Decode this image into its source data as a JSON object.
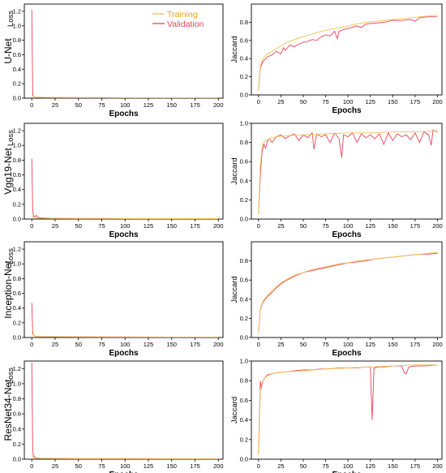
{
  "figure": {
    "legend": {
      "training": "Training",
      "validation": "Validation"
    },
    "colors": {
      "training": "#F2C14E",
      "validation": "#E8445A",
      "axis": "#000000"
    }
  },
  "chart_data": [
    {
      "type": "line",
      "model": "U-Net",
      "metric": "loss",
      "xlabel": "Epochs",
      "ylabel": "Loss",
      "xlim": [
        -8,
        205
      ],
      "ylim": [
        0,
        1.3
      ],
      "xticks": [
        0,
        25,
        50,
        75,
        100,
        125,
        150,
        175,
        200
      ],
      "yticks": [
        0.0,
        0.2,
        0.4,
        0.6,
        0.8,
        1.0,
        1.2
      ],
      "ytick_labels": [
        "0.0",
        "0.2",
        "0.4",
        "0.6",
        "0.8",
        "1.0",
        "1.2"
      ],
      "legend_position": "top-center",
      "series": [
        {
          "name": "Training",
          "x": [
            0,
            1,
            2,
            3,
            5,
            10,
            20,
            50,
            100,
            150,
            200
          ],
          "y": [
            0.06,
            0.03,
            0.02,
            0.015,
            0.012,
            0.01,
            0.009,
            0.008,
            0.007,
            0.006,
            0.006
          ]
        },
        {
          "name": "Validation",
          "x": [
            0,
            1,
            2,
            3,
            5,
            10,
            20,
            50,
            100,
            150,
            200
          ],
          "y": [
            1.22,
            0.05,
            0.02,
            0.015,
            0.012,
            0.01,
            0.009,
            0.008,
            0.007,
            0.006,
            0.006
          ]
        }
      ]
    },
    {
      "type": "line",
      "model": "U-Net",
      "metric": "jaccard",
      "xlabel": "Epochs",
      "ylabel": "Jaccard",
      "xlim": [
        -8,
        205
      ],
      "ylim": [
        0,
        1.0
      ],
      "xticks": [
        0,
        25,
        50,
        75,
        100,
        125,
        150,
        175,
        200
      ],
      "yticks": [
        0.0,
        0.2,
        0.4,
        0.6,
        0.8
      ],
      "ytick_labels": [
        "0.0",
        "0.2",
        "0.4",
        "0.6",
        "0.8"
      ],
      "series": [
        {
          "name": "Training",
          "x": [
            0,
            2,
            5,
            10,
            15,
            20,
            25,
            30,
            40,
            50,
            60,
            70,
            80,
            90,
            100,
            110,
            120,
            130,
            140,
            150,
            160,
            170,
            180,
            190,
            200
          ],
          "y": [
            0.05,
            0.32,
            0.4,
            0.45,
            0.48,
            0.51,
            0.54,
            0.57,
            0.61,
            0.64,
            0.67,
            0.7,
            0.72,
            0.74,
            0.76,
            0.78,
            0.8,
            0.81,
            0.82,
            0.83,
            0.84,
            0.85,
            0.86,
            0.87,
            0.88
          ]
        },
        {
          "name": "Validation",
          "x": [
            0,
            2,
            5,
            10,
            15,
            20,
            25,
            28,
            30,
            35,
            40,
            45,
            50,
            55,
            60,
            65,
            70,
            75,
            80,
            85,
            88,
            90,
            95,
            100,
            110,
            115,
            120,
            130,
            140,
            150,
            160,
            170,
            175,
            180,
            190,
            200
          ],
          "y": [
            0.05,
            0.3,
            0.37,
            0.42,
            0.44,
            0.48,
            0.45,
            0.52,
            0.49,
            0.55,
            0.53,
            0.56,
            0.58,
            0.59,
            0.61,
            0.6,
            0.64,
            0.66,
            0.65,
            0.7,
            0.62,
            0.7,
            0.72,
            0.73,
            0.76,
            0.74,
            0.78,
            0.79,
            0.8,
            0.82,
            0.82,
            0.83,
            0.81,
            0.85,
            0.86,
            0.86
          ]
        }
      ]
    },
    {
      "type": "line",
      "model": "Vgg19-Net",
      "metric": "loss",
      "xlabel": "Epochs",
      "ylabel": "Loss",
      "xlim": [
        -8,
        205
      ],
      "ylim": [
        0,
        1.3
      ],
      "xticks": [
        0,
        25,
        50,
        75,
        100,
        125,
        150,
        175,
        200
      ],
      "yticks": [
        0.0,
        0.2,
        0.4,
        0.6,
        0.8,
        1.0,
        1.2
      ],
      "ytick_labels": [
        "0.0",
        "0.2",
        "0.4",
        "0.6",
        "0.8",
        "1.0",
        "1.2"
      ],
      "series": [
        {
          "name": "Training",
          "x": [
            0,
            1,
            2,
            3,
            5,
            10,
            20,
            50,
            100,
            150,
            200
          ],
          "y": [
            0.05,
            0.03,
            0.02,
            0.015,
            0.012,
            0.01,
            0.009,
            0.008,
            0.007,
            0.006,
            0.006
          ]
        },
        {
          "name": "Validation",
          "x": [
            0,
            1,
            2,
            3,
            4,
            5,
            6,
            7,
            8,
            10,
            20,
            50,
            100,
            150,
            200
          ],
          "y": [
            0.82,
            0.1,
            0.04,
            0.03,
            0.04,
            0.05,
            0.03,
            0.02,
            0.02,
            0.015,
            0.01,
            0.008,
            0.007,
            0.006,
            0.006
          ]
        }
      ]
    },
    {
      "type": "line",
      "model": "Vgg19-Net",
      "metric": "jaccard",
      "xlabel": "Epochs",
      "ylabel": "Jaccard",
      "xlim": [
        -8,
        205
      ],
      "ylim": [
        0,
        1.0
      ],
      "xticks": [
        0,
        25,
        50,
        75,
        100,
        125,
        150,
        175,
        200
      ],
      "yticks": [
        0.0,
        0.2,
        0.4,
        0.6,
        0.8,
        1.0
      ],
      "ytick_labels": [
        "0.0",
        "0.2",
        "0.4",
        "0.6",
        "0.8",
        "1.0"
      ],
      "series": [
        {
          "name": "Training",
          "x": [
            0,
            2,
            4,
            6,
            8,
            10,
            15,
            20,
            30,
            50,
            75,
            100,
            125,
            150,
            175,
            200
          ],
          "y": [
            0.05,
            0.55,
            0.75,
            0.8,
            0.82,
            0.83,
            0.85,
            0.86,
            0.87,
            0.88,
            0.89,
            0.9,
            0.9,
            0.91,
            0.91,
            0.92
          ]
        },
        {
          "name": "Validation",
          "x": [
            0,
            2,
            4,
            6,
            8,
            10,
            12,
            15,
            20,
            25,
            30,
            35,
            40,
            45,
            50,
            55,
            60,
            62,
            65,
            70,
            75,
            80,
            85,
            90,
            93,
            95,
            100,
            105,
            110,
            115,
            120,
            125,
            130,
            135,
            140,
            145,
            150,
            155,
            160,
            165,
            170,
            175,
            180,
            185,
            190,
            193,
            195,
            200
          ],
          "y": [
            0.05,
            0.45,
            0.7,
            0.78,
            0.74,
            0.82,
            0.84,
            0.8,
            0.86,
            0.88,
            0.84,
            0.87,
            0.89,
            0.82,
            0.88,
            0.85,
            0.9,
            0.73,
            0.89,
            0.86,
            0.88,
            0.8,
            0.9,
            0.84,
            0.64,
            0.88,
            0.86,
            0.9,
            0.8,
            0.89,
            0.85,
            0.88,
            0.84,
            0.89,
            0.78,
            0.9,
            0.82,
            0.89,
            0.86,
            0.88,
            0.83,
            0.9,
            0.8,
            0.91,
            0.88,
            0.77,
            0.93,
            0.91
          ]
        }
      ]
    },
    {
      "type": "line",
      "model": "Inception-Net",
      "metric": "loss",
      "xlabel": "Epochs",
      "ylabel": "Loss",
      "xlim": [
        -8,
        205
      ],
      "ylim": [
        0,
        1.3
      ],
      "xticks": [
        0,
        25,
        50,
        75,
        100,
        125,
        150,
        175,
        200
      ],
      "yticks": [
        0.0,
        0.2,
        0.4,
        0.6,
        0.8,
        1.0,
        1.2
      ],
      "ytick_labels": [
        "0.0",
        "0.2",
        "0.4",
        "0.6",
        "0.8",
        "1.0",
        "1.2"
      ],
      "series": [
        {
          "name": "Training",
          "x": [
            0,
            1,
            2,
            3,
            5,
            10,
            20,
            50,
            100,
            150,
            200
          ],
          "y": [
            0.08,
            0.04,
            0.03,
            0.02,
            0.015,
            0.012,
            0.01,
            0.009,
            0.008,
            0.007,
            0.007
          ]
        },
        {
          "name": "Validation",
          "x": [
            0,
            1,
            2,
            3,
            5,
            10,
            20,
            50,
            100,
            150,
            200
          ],
          "y": [
            0.47,
            0.06,
            0.03,
            0.02,
            0.015,
            0.012,
            0.01,
            0.009,
            0.008,
            0.007,
            0.007
          ]
        }
      ]
    },
    {
      "type": "line",
      "model": "Inception-Net",
      "metric": "jaccard",
      "xlabel": "Epochs",
      "ylabel": "Jaccard",
      "xlim": [
        -8,
        205
      ],
      "ylim": [
        0,
        1.0
      ],
      "xticks": [
        0,
        25,
        50,
        75,
        100,
        125,
        150,
        175,
        200
      ],
      "yticks": [
        0.0,
        0.2,
        0.4,
        0.6,
        0.8
      ],
      "ytick_labels": [
        "0.0",
        "0.2",
        "0.4",
        "0.6",
        "0.8"
      ],
      "series": [
        {
          "name": "Training",
          "x": [
            0,
            2,
            5,
            10,
            15,
            20,
            25,
            30,
            40,
            50,
            60,
            70,
            80,
            90,
            100,
            110,
            120,
            130,
            140,
            150,
            160,
            170,
            180,
            190,
            200
          ],
          "y": [
            0.05,
            0.3,
            0.38,
            0.44,
            0.49,
            0.53,
            0.57,
            0.6,
            0.65,
            0.68,
            0.71,
            0.73,
            0.75,
            0.77,
            0.78,
            0.8,
            0.81,
            0.82,
            0.83,
            0.84,
            0.85,
            0.86,
            0.87,
            0.88,
            0.89
          ]
        },
        {
          "name": "Validation",
          "x": [
            0,
            2,
            5,
            10,
            15,
            18,
            20,
            25,
            30,
            40,
            50,
            60,
            70,
            80,
            90,
            100,
            110,
            120,
            130,
            140,
            150,
            160,
            170,
            180,
            190,
            200
          ],
          "y": [
            0.05,
            0.29,
            0.37,
            0.43,
            0.47,
            0.5,
            0.52,
            0.56,
            0.59,
            0.64,
            0.68,
            0.7,
            0.72,
            0.74,
            0.76,
            0.78,
            0.79,
            0.8,
            0.82,
            0.83,
            0.84,
            0.85,
            0.86,
            0.87,
            0.87,
            0.88
          ]
        }
      ]
    },
    {
      "type": "line",
      "model": "ResNet34-Net",
      "metric": "loss",
      "xlabel": "Epochs",
      "ylabel": "Loss",
      "xlim": [
        -8,
        205
      ],
      "ylim": [
        0,
        1.3
      ],
      "xticks": [
        0,
        25,
        50,
        75,
        100,
        125,
        150,
        175,
        200
      ],
      "yticks": [
        0.0,
        0.2,
        0.4,
        0.6,
        0.8,
        1.0,
        1.2
      ],
      "ytick_labels": [
        "0.0",
        "0.2",
        "0.4",
        "0.6",
        "0.8",
        "1.0",
        "1.2"
      ],
      "series": [
        {
          "name": "Training",
          "x": [
            0,
            1,
            2,
            3,
            5,
            10,
            20,
            50,
            100,
            150,
            200
          ],
          "y": [
            0.06,
            0.03,
            0.02,
            0.015,
            0.012,
            0.01,
            0.009,
            0.008,
            0.007,
            0.006,
            0.006
          ]
        },
        {
          "name": "Validation",
          "x": [
            0,
            1,
            2,
            3,
            4,
            5,
            10,
            20,
            50,
            100,
            150,
            200
          ],
          "y": [
            1.28,
            0.1,
            0.04,
            0.03,
            0.02,
            0.015,
            0.012,
            0.01,
            0.008,
            0.007,
            0.006,
            0.006
          ]
        }
      ]
    },
    {
      "type": "line",
      "model": "ResNet34-Net",
      "metric": "jaccard",
      "xlabel": "Epochs",
      "ylabel": "Jaccard",
      "xlim": [
        -8,
        205
      ],
      "ylim": [
        0,
        1.0
      ],
      "xticks": [
        0,
        25,
        50,
        75,
        100,
        125,
        150,
        175,
        200
      ],
      "yticks": [
        0.0,
        0.2,
        0.4,
        0.6,
        0.8,
        1.0
      ],
      "ytick_labels": [
        "0.0",
        "0.2",
        "0.4",
        "0.6",
        "0.8",
        "1.0"
      ],
      "series": [
        {
          "name": "Training",
          "x": [
            0,
            2,
            4,
            6,
            10,
            15,
            20,
            30,
            50,
            75,
            100,
            125,
            150,
            175,
            200
          ],
          "y": [
            0.05,
            0.7,
            0.78,
            0.82,
            0.85,
            0.87,
            0.88,
            0.89,
            0.9,
            0.92,
            0.93,
            0.94,
            0.95,
            0.96,
            0.96
          ]
        },
        {
          "name": "Validation",
          "x": [
            0,
            2,
            3,
            4,
            5,
            8,
            10,
            15,
            20,
            30,
            40,
            50,
            60,
            70,
            80,
            90,
            100,
            110,
            120,
            125,
            127,
            129,
            135,
            140,
            150,
            160,
            163,
            165,
            168,
            175,
            185,
            200
          ],
          "y": [
            0.05,
            0.8,
            0.72,
            0.76,
            0.8,
            0.84,
            0.86,
            0.87,
            0.88,
            0.89,
            0.9,
            0.91,
            0.91,
            0.92,
            0.92,
            0.93,
            0.93,
            0.93,
            0.94,
            0.94,
            0.4,
            0.93,
            0.94,
            0.94,
            0.95,
            0.95,
            0.88,
            0.87,
            0.94,
            0.95,
            0.95,
            0.96
          ]
        }
      ]
    }
  ]
}
